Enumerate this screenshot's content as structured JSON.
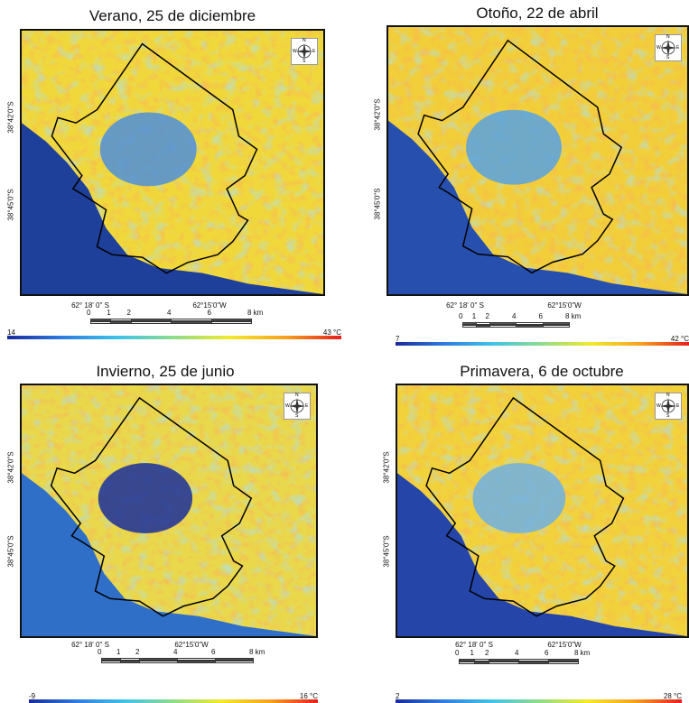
{
  "panels": [
    {
      "title": "Verano, 25 de diciembre",
      "lat_labels": [
        "38°42'0\"S",
        "38°45'0\"S"
      ],
      "lon_labels": [
        "62° 18' 0\" S",
        "62°15'0\"W"
      ],
      "scale_labels": [
        "0",
        "1",
        "2",
        "4",
        "6",
        "8 km"
      ],
      "legend_min": "14",
      "legend_max": "43 °C",
      "compass": [
        "N",
        "S",
        "E",
        "W"
      ]
    },
    {
      "title": "Otoño, 22 de abril",
      "lat_labels": [
        "38°42'0\"S",
        "38°45'0\"S"
      ],
      "lon_labels": [
        "62° 18' 0\" S",
        "62°15'0\"W"
      ],
      "scale_labels": [
        "0",
        "1",
        "2",
        "4",
        "6",
        "8 km"
      ],
      "legend_min": "7",
      "legend_max": "42 °C",
      "compass": [
        "N",
        "S",
        "E",
        "W"
      ]
    },
    {
      "title": "Invierno, 25 de junio",
      "lat_labels": [
        "38°42'0\"S",
        "38°45'0\"S"
      ],
      "lon_labels": [
        "62° 18' 0\" S",
        "62°15'0\"W"
      ],
      "scale_labels": [
        "0",
        "1",
        "2",
        "4",
        "6",
        "8 km"
      ],
      "legend_min": "-9",
      "legend_max": "16 °C",
      "compass": [
        "N",
        "S",
        "E",
        "W"
      ]
    },
    {
      "title": "Primavera, 6 de octubre",
      "lat_labels": [
        "38°42'0\"S",
        "38°45'0\"S"
      ],
      "lon_labels": [
        "62° 18' 0\" S",
        "62°15'0\"W"
      ],
      "scale_labels": [
        "0",
        "1",
        "2",
        "4",
        "6",
        "8 km"
      ],
      "legend_min": "2",
      "legend_max": "28 °C",
      "compass": [
        "N",
        "S",
        "E",
        "W"
      ]
    }
  ]
}
